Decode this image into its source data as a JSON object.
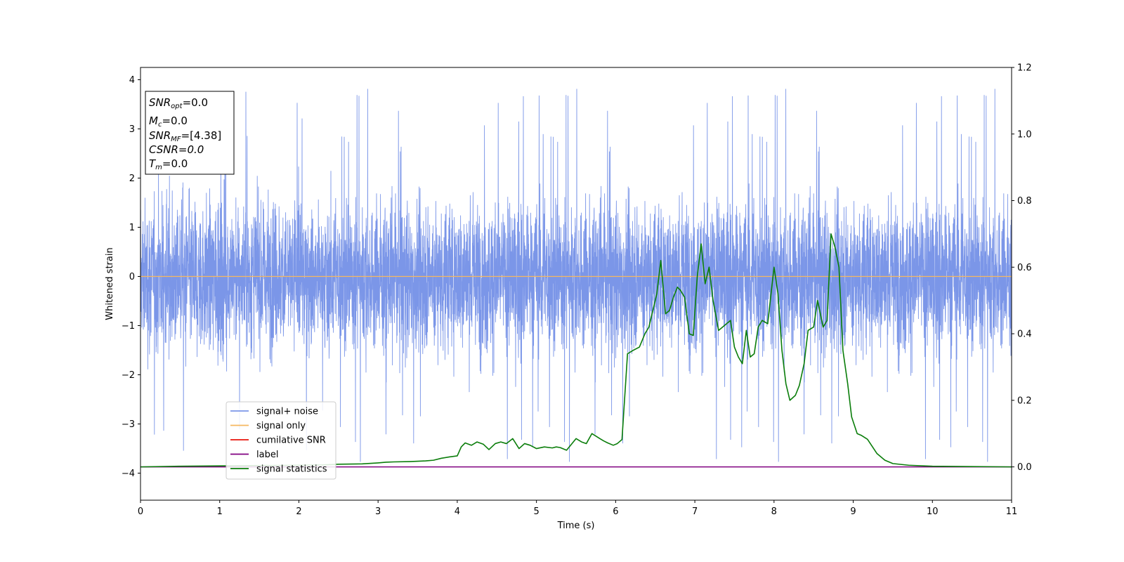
{
  "chart_data": {
    "type": "line",
    "xlabel": "Time (s)",
    "ylabel": "Whitened strain",
    "xlim": [
      0,
      11
    ],
    "ylim": [
      -4.55,
      4.25
    ],
    "y2lim": [
      -0.1,
      1.2
    ],
    "x_ticks": [
      "0",
      "1",
      "2",
      "3",
      "4",
      "5",
      "6",
      "7",
      "8",
      "9",
      "10",
      "11"
    ],
    "y_ticks": [
      "4",
      "3",
      "2",
      "1",
      "0",
      "−1",
      "−2",
      "−3",
      "−4"
    ],
    "y_tick_values": [
      4,
      3,
      2,
      1,
      0,
      -1,
      -2,
      -3,
      -4
    ],
    "y2_ticks": [
      "1.2",
      "1.0",
      "0.8",
      "0.6",
      "0.4",
      "0.2",
      "0.0"
    ],
    "y2_tick_values": [
      1.2,
      1.0,
      0.8,
      0.6,
      0.4,
      0.2,
      0.0
    ],
    "colors": {
      "signal_noise": "#7b96e8",
      "signal_only": "#f5b860",
      "cumulative_snr": "#e8140c",
      "label": "#800080",
      "signal_statistics": "#0a7d0a"
    },
    "legend": {
      "placement": "lower-left",
      "entries": [
        "signal+ noise",
        "signal only",
        "cumilative SNR",
        "label",
        "signal statistics"
      ]
    },
    "info_box": {
      "snr_opt": {
        "base": "SNR",
        "sub": "opt",
        "value": "=0.0"
      },
      "mc": {
        "base": "M",
        "sub": "c",
        "value": "=0.0"
      },
      "snr_mf": {
        "base": "SNR",
        "sub": "MF",
        "value": "=[4.38]"
      },
      "csnr": {
        "text": "CSNR=0.0"
      },
      "tm": {
        "base": "T",
        "sub": "m",
        "value": "=0.0"
      }
    },
    "series": [
      {
        "name": "signal+ noise",
        "axis": "left",
        "style": "noise",
        "amplitude_min": -4.2,
        "amplitude_max": 3.9
      },
      {
        "name": "signal only",
        "axis": "left",
        "x": [
          0,
          11
        ],
        "y": [
          0,
          0
        ]
      },
      {
        "name": "label",
        "axis": "right",
        "x": [
          0,
          11
        ],
        "y": [
          0,
          0
        ]
      },
      {
        "name": "signal statistics",
        "axis": "right",
        "x": [
          0,
          0.5,
          1.0,
          1.5,
          2.0,
          2.3,
          2.5,
          2.8,
          3.0,
          3.1,
          3.2,
          3.4,
          3.6,
          3.7,
          3.8,
          3.9,
          4.0,
          4.05,
          4.1,
          4.18,
          4.25,
          4.33,
          4.4,
          4.48,
          4.55,
          4.62,
          4.7,
          4.78,
          4.85,
          4.92,
          5.0,
          5.1,
          5.2,
          5.25,
          5.3,
          5.38,
          5.5,
          5.57,
          5.63,
          5.7,
          5.8,
          5.85,
          5.9,
          5.97,
          6.02,
          6.08,
          6.15,
          6.22,
          6.3,
          6.37,
          6.42,
          6.47,
          6.52,
          6.57,
          6.63,
          6.68,
          6.73,
          6.78,
          6.82,
          6.87,
          6.93,
          6.98,
          7.03,
          7.08,
          7.13,
          7.18,
          7.23,
          7.3,
          7.35,
          7.4,
          7.45,
          7.5,
          7.55,
          7.6,
          7.65,
          7.7,
          7.75,
          7.8,
          7.85,
          7.92,
          8.0,
          8.05,
          8.1,
          8.15,
          8.2,
          8.27,
          8.32,
          8.38,
          8.43,
          8.5,
          8.55,
          8.62,
          8.67,
          8.72,
          8.77,
          8.82,
          8.87,
          8.93,
          8.98,
          9.05,
          9.1,
          9.18,
          9.3,
          9.4,
          9.5,
          9.7,
          10.0,
          10.5,
          11.0
        ],
        "y": [
          0.0,
          0.002,
          0.003,
          0.004,
          0.005,
          0.006,
          0.008,
          0.009,
          0.012,
          0.014,
          0.015,
          0.016,
          0.018,
          0.02,
          0.026,
          0.03,
          0.033,
          0.06,
          0.072,
          0.065,
          0.075,
          0.068,
          0.052,
          0.07,
          0.075,
          0.07,
          0.085,
          0.055,
          0.07,
          0.065,
          0.055,
          0.06,
          0.057,
          0.06,
          0.058,
          0.05,
          0.085,
          0.075,
          0.07,
          0.1,
          0.085,
          0.078,
          0.072,
          0.065,
          0.07,
          0.082,
          0.34,
          0.35,
          0.36,
          0.4,
          0.42,
          0.47,
          0.52,
          0.62,
          0.46,
          0.47,
          0.51,
          0.54,
          0.53,
          0.51,
          0.4,
          0.395,
          0.57,
          0.67,
          0.55,
          0.6,
          0.5,
          0.41,
          0.42,
          0.43,
          0.44,
          0.36,
          0.33,
          0.31,
          0.41,
          0.33,
          0.34,
          0.42,
          0.44,
          0.43,
          0.6,
          0.52,
          0.35,
          0.25,
          0.2,
          0.215,
          0.245,
          0.31,
          0.41,
          0.42,
          0.5,
          0.42,
          0.44,
          0.7,
          0.66,
          0.6,
          0.35,
          0.25,
          0.15,
          0.1,
          0.095,
          0.083,
          0.04,
          0.02,
          0.01,
          0.005,
          0.002,
          0.001,
          0.0
        ]
      }
    ]
  }
}
